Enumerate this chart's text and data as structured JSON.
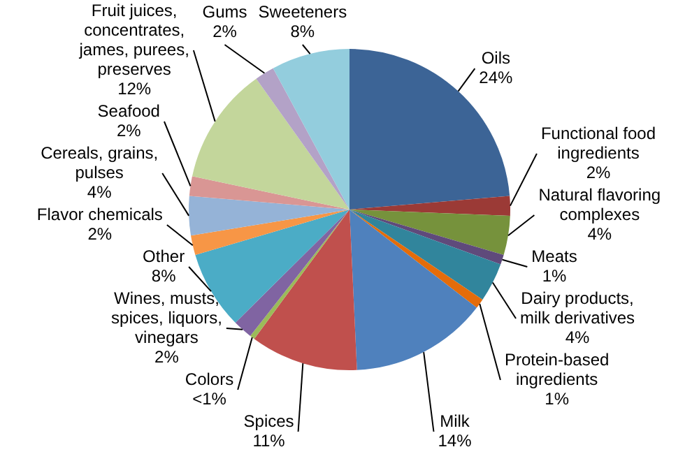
{
  "chart_data": {
    "type": "pie",
    "categories": [
      "Oils",
      "Functional food ingredients",
      "Natural flavoring complexes",
      "Meats",
      "Dairy products, milk derivatives",
      "Protein-based ingredients",
      "Milk",
      "Spices",
      "Colors",
      "Wines, musts, spices, liquors, vinegars",
      "Other",
      "Flavor chemicals",
      "Cereals, grains, pulses",
      "Seafood",
      "Fruit juices, concentrates, james, purees, preserves",
      "Gums",
      "Sweeteners"
    ],
    "values": [
      24,
      2,
      4,
      1,
      4,
      1,
      14,
      11,
      0.5,
      2,
      8,
      2,
      4,
      2,
      12,
      2,
      8
    ],
    "value_labels": [
      "24%",
      "2%",
      "4%",
      "1%",
      "4%",
      "1%",
      "14%",
      "11%",
      "<1%",
      "2%",
      "8%",
      "2%",
      "4%",
      "2%",
      "12%",
      "2%",
      "8%"
    ],
    "colors": [
      "#3c6496",
      "#9b3a36",
      "#76923c",
      "#5f4a7b",
      "#31859c",
      "#e46c0a",
      "#4f81bd",
      "#c0504d",
      "#9bbb59",
      "#8064a2",
      "#4bacc6",
      "#f79646",
      "#95b3d7",
      "#d99694",
      "#c3d69b",
      "#b3a2c7",
      "#93cddd"
    ]
  }
}
